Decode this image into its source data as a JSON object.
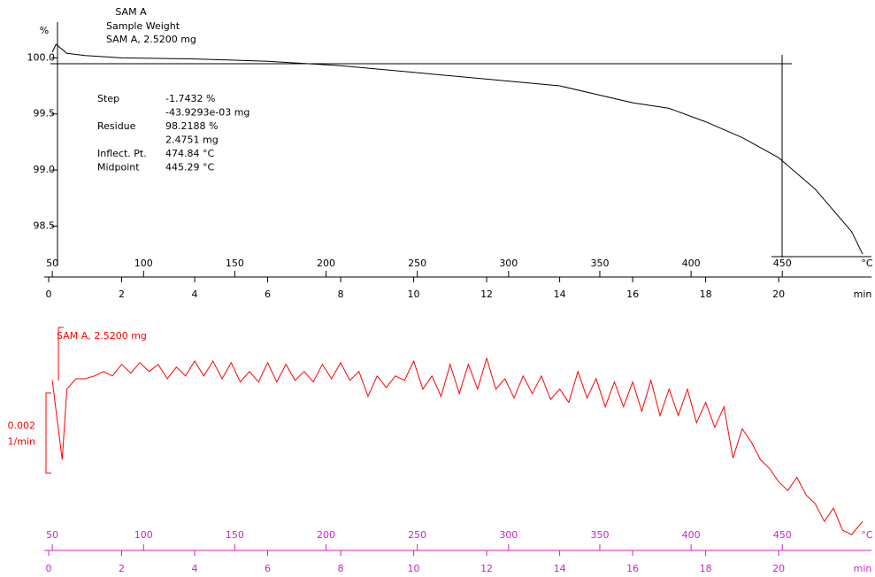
{
  "chart_data": [
    {
      "type": "line",
      "title_lines": [
        "SAM A",
        "Sample Weight",
        "SAM A, 2.5200 mg"
      ],
      "ylabel": "%",
      "xlabel": "min",
      "x2label": "°C",
      "color": "#000000",
      "tick_color": "#000000",
      "xlim": [
        0,
        22.3
      ],
      "xticks": [
        0,
        2,
        4,
        6,
        8,
        10,
        12,
        14,
        16,
        18,
        20
      ],
      "x2lim": [
        48,
        494
      ],
      "x2ticks": [
        50,
        100,
        150,
        200,
        250,
        300,
        350,
        400,
        450
      ],
      "ylim": [
        98.22,
        100.2
      ],
      "yticks": [
        {
          "value": 100,
          "label": "100.0"
        },
        99.5,
        {
          "value": 99,
          "label": "99.0"
        },
        98.5
      ],
      "x": [
        0.1,
        0.2,
        0.5,
        1,
        2,
        4,
        6,
        8,
        10,
        12,
        14,
        16,
        17,
        18,
        19,
        20,
        21,
        22,
        22.3
      ],
      "values": [
        100.05,
        100.12,
        100.04,
        100.02,
        100.0,
        99.99,
        99.97,
        99.93,
        99.87,
        99.81,
        99.75,
        99.6,
        99.55,
        99.43,
        99.29,
        99.11,
        98.83,
        98.45,
        98.25
      ],
      "annotations": [
        {
          "label": "Step",
          "values": [
            "-1.7432 %",
            "-43.9293e-03 mg"
          ]
        },
        {
          "label": "Residue",
          "values": [
            "98.2188 %",
            "2.4751 mg"
          ]
        },
        {
          "label": "Inflect. Pt.",
          "values": [
            "474.84 °C"
          ]
        },
        {
          "label": "Midpoint",
          "values": [
            "445.29 °C"
          ]
        }
      ]
    },
    {
      "type": "line",
      "label": "SAM A, 2.5200 mg",
      "xlabel": "min",
      "x2label": "°C",
      "color": "#ff0000",
      "tick_color": "#cc22cc",
      "scale_bar": {
        "value": 0.002,
        "unit": "1/min"
      },
      "xlim": [
        0,
        22.3
      ],
      "xticks": [
        0,
        2,
        4,
        6,
        8,
        10,
        12,
        14,
        16,
        18,
        20
      ],
      "x2lim": [
        48,
        494
      ],
      "x2ticks": [
        50,
        100,
        150,
        200,
        250,
        300,
        350,
        400,
        450
      ],
      "ylim": [
        -0.0053,
        0
      ],
      "x": [
        0.1,
        0.37,
        0.5,
        0.75,
        1.0,
        1.25,
        1.5,
        1.75,
        2.0,
        2.25,
        2.5,
        2.75,
        3.0,
        3.25,
        3.5,
        3.75,
        4.0,
        4.25,
        4.5,
        4.75,
        5.0,
        5.25,
        5.5,
        5.75,
        6.0,
        6.25,
        6.5,
        6.75,
        7.0,
        7.25,
        7.5,
        7.75,
        8.0,
        8.25,
        8.5,
        8.75,
        9.0,
        9.25,
        9.5,
        9.75,
        10.0,
        10.25,
        10.5,
        10.75,
        11.0,
        11.25,
        11.5,
        11.75,
        12.0,
        12.25,
        12.5,
        12.75,
        13.0,
        13.25,
        13.5,
        13.75,
        14.0,
        14.25,
        14.5,
        14.75,
        15.0,
        15.25,
        15.5,
        15.75,
        16.0,
        16.25,
        16.5,
        16.75,
        17.0,
        17.25,
        17.5,
        17.75,
        18.0,
        18.25,
        18.5,
        18.75,
        19.0,
        19.25,
        19.5,
        19.75,
        20.0,
        20.25,
        20.5,
        20.75,
        21.0,
        21.25,
        21.5,
        21.75,
        22.0,
        22.3
      ],
      "values": [
        -0.00132,
        -0.0033,
        -0.00154,
        -0.00128,
        -0.00128,
        -0.00121,
        -0.0011,
        -0.00121,
        -0.00092,
        -0.00114,
        -0.00088,
        -0.0011,
        -0.00092,
        -0.00128,
        -0.00099,
        -0.00121,
        -0.00084,
        -0.00121,
        -0.00084,
        -0.00128,
        -0.00088,
        -0.00136,
        -0.0011,
        -0.00136,
        -0.00088,
        -0.00136,
        -0.00092,
        -0.00132,
        -0.0011,
        -0.00136,
        -0.00092,
        -0.00128,
        -0.00088,
        -0.00132,
        -0.0011,
        -0.00172,
        -0.00121,
        -0.0015,
        -0.00121,
        -0.00132,
        -0.00084,
        -0.00154,
        -0.00121,
        -0.00172,
        -0.00092,
        -0.00165,
        -0.00092,
        -0.00154,
        -0.00077,
        -0.00154,
        -0.00128,
        -0.00176,
        -0.00121,
        -0.00165,
        -0.00121,
        -0.0018,
        -0.00154,
        -0.00187,
        -0.0011,
        -0.00176,
        -0.00128,
        -0.00198,
        -0.00136,
        -0.00198,
        -0.00136,
        -0.00209,
        -0.00132,
        -0.0022,
        -0.00154,
        -0.0022,
        -0.00154,
        -0.00238,
        -0.00187,
        -0.00249,
        -0.00198,
        -0.00326,
        -0.00253,
        -0.00286,
        -0.0033,
        -0.00352,
        -0.00385,
        -0.00407,
        -0.00374,
        -0.00418,
        -0.0044,
        -0.00484,
        -0.00451,
        -0.00506,
        -0.00517,
        -0.00484
      ]
    }
  ]
}
